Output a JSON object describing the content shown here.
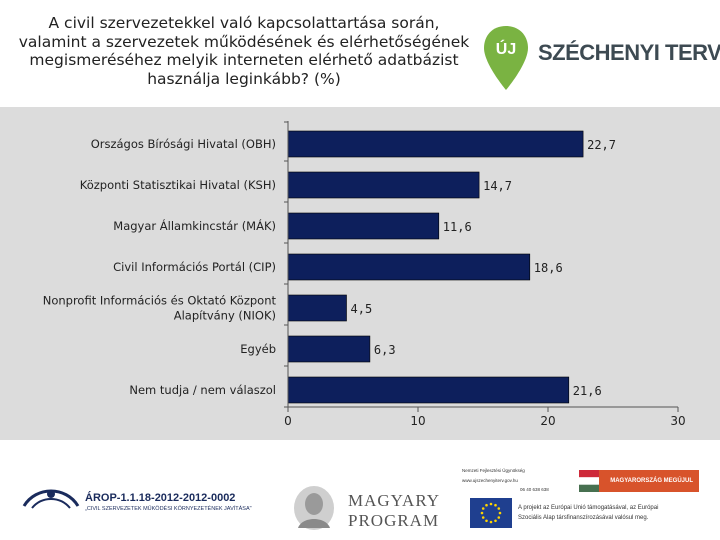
{
  "title": "A civil szervezetekkel való kapcsolattartása során, valamint a szervezetek működésének és elérhetőségének megismeréséhez melyik interneten elérhető adatbázist használja leginkább?  (%)",
  "logo_top": {
    "badge": "ÚJ",
    "brand": "SZÉCHENYI TERV"
  },
  "chart_data": {
    "type": "bar",
    "orientation": "horizontal",
    "title": "A civil szervezetekkel való kapcsolattartása során, valamint a szervezetek működésének és elérhetőségének megismeréséhez melyik interneten elérhető adatbázist használja leginkább?  (%)",
    "categories": [
      "Országos Bírósági Hivatal (OBH)",
      "Központi Statisztikai Hivatal (KSH)",
      "Magyar Államkincstár (MÁK)",
      "Civil Információs Portál (CIP)",
      "Nonprofit Információs és Oktató Központ Alapítvány (NIOK)",
      "Egyéb",
      "Nem tudja / nem válaszol"
    ],
    "category_lines": [
      [
        "Országos Bírósági Hivatal (OBH)"
      ],
      [
        "Központi Statisztikai Hivatal (KSH)"
      ],
      [
        "Magyar Államkincstár (MÁK)"
      ],
      [
        "Civil Információs Portál (CIP)"
      ],
      [
        "Nonprofit Információs és Oktató Központ",
        "Alapítvány (NIOK)"
      ],
      [
        "Egyéb"
      ],
      [
        "Nem tudja / nem válaszol"
      ]
    ],
    "values": [
      22.7,
      14.7,
      11.6,
      18.6,
      4.5,
      6.3,
      21.6
    ],
    "data_labels": [
      "22,7",
      "14,7",
      "11,6",
      "18,6",
      "4,5",
      "6,3",
      "21,6"
    ],
    "xlim": [
      0,
      30
    ],
    "xticks": [
      0,
      10,
      20,
      30
    ],
    "xtick_labels": [
      "0",
      "10",
      "20",
      "30"
    ],
    "xlabel": "",
    "ylabel": "",
    "grid": false,
    "legend": "none",
    "bar_color": "#0d1f5c",
    "background": "#dcdcdc"
  },
  "footer": {
    "arop_code": "ÁROP-1.1.18-2012-2012-0002",
    "arop_sub": "„CIVIL SZERVEZETEK MŰKÖDÉSI KÖRNYEZETÉNEK JAVÍTÁSA\"",
    "magyary_1": "MAGYARY",
    "magyary_2": "PROGRAM",
    "nfu_1": "Nemzeti Fejlesztési Ügynökség",
    "nfu_2": "www.ujszechenyiterv.gov.hu",
    "nfu_3": "06 40 638 638",
    "mo_badge": "MAGYARORSZÁG MEGÚJUL",
    "eu_1": "A projekt az Európai Unió támogatásával, az Európai",
    "eu_2": "Szociális Alap társfinanszírozásával valósul meg."
  },
  "colors": {
    "bar": "#0d1f5c",
    "panel": "#dcdcdc",
    "szechenyi_green": "#7ab342",
    "eu_blue": "#1f3f8f",
    "eu_star": "#ffd400",
    "badge_orange": "#d8532b"
  }
}
